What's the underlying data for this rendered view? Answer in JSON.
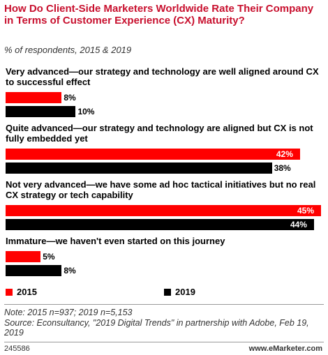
{
  "chart_data": {
    "type": "bar",
    "orientation": "horizontal",
    "title": "How Do Client-Side Marketers Worldwide Rate Their Company in Terms of Customer Experience (CX) Maturity?",
    "subtitle": "% of respondents, 2015 & 2019",
    "categories": [
      "Very advanced—our strategy and technology are well aligned around CX to successful effect",
      "Quite advanced—our strategy and technology are aligned but CX is not fully embedded yet",
      "Not very advanced—we have some ad hoc tactical initiatives but no real CX strategy or tech capability",
      "Immature—we haven't even started on this journey"
    ],
    "series": [
      {
        "name": "2015",
        "color": "#ff0000",
        "values": [
          8,
          42,
          45,
          5
        ],
        "value_labels": [
          "8%",
          "42%",
          "45%",
          "5%"
        ]
      },
      {
        "name": "2019",
        "color": "#000000",
        "values": [
          10,
          38,
          44,
          8
        ],
        "value_labels": [
          "10%",
          "38%",
          "44%",
          "8%"
        ]
      }
    ],
    "xlim": [
      0,
      45
    ],
    "note": "Note: 2015 n=937; 2019 n=5,153",
    "source": "Source: Econsultancy, \"2019 Digital Trends\" in partnership with Adobe, Feb 19, 2019",
    "chart_id": "245586",
    "site": "www.eMarketer.com"
  }
}
